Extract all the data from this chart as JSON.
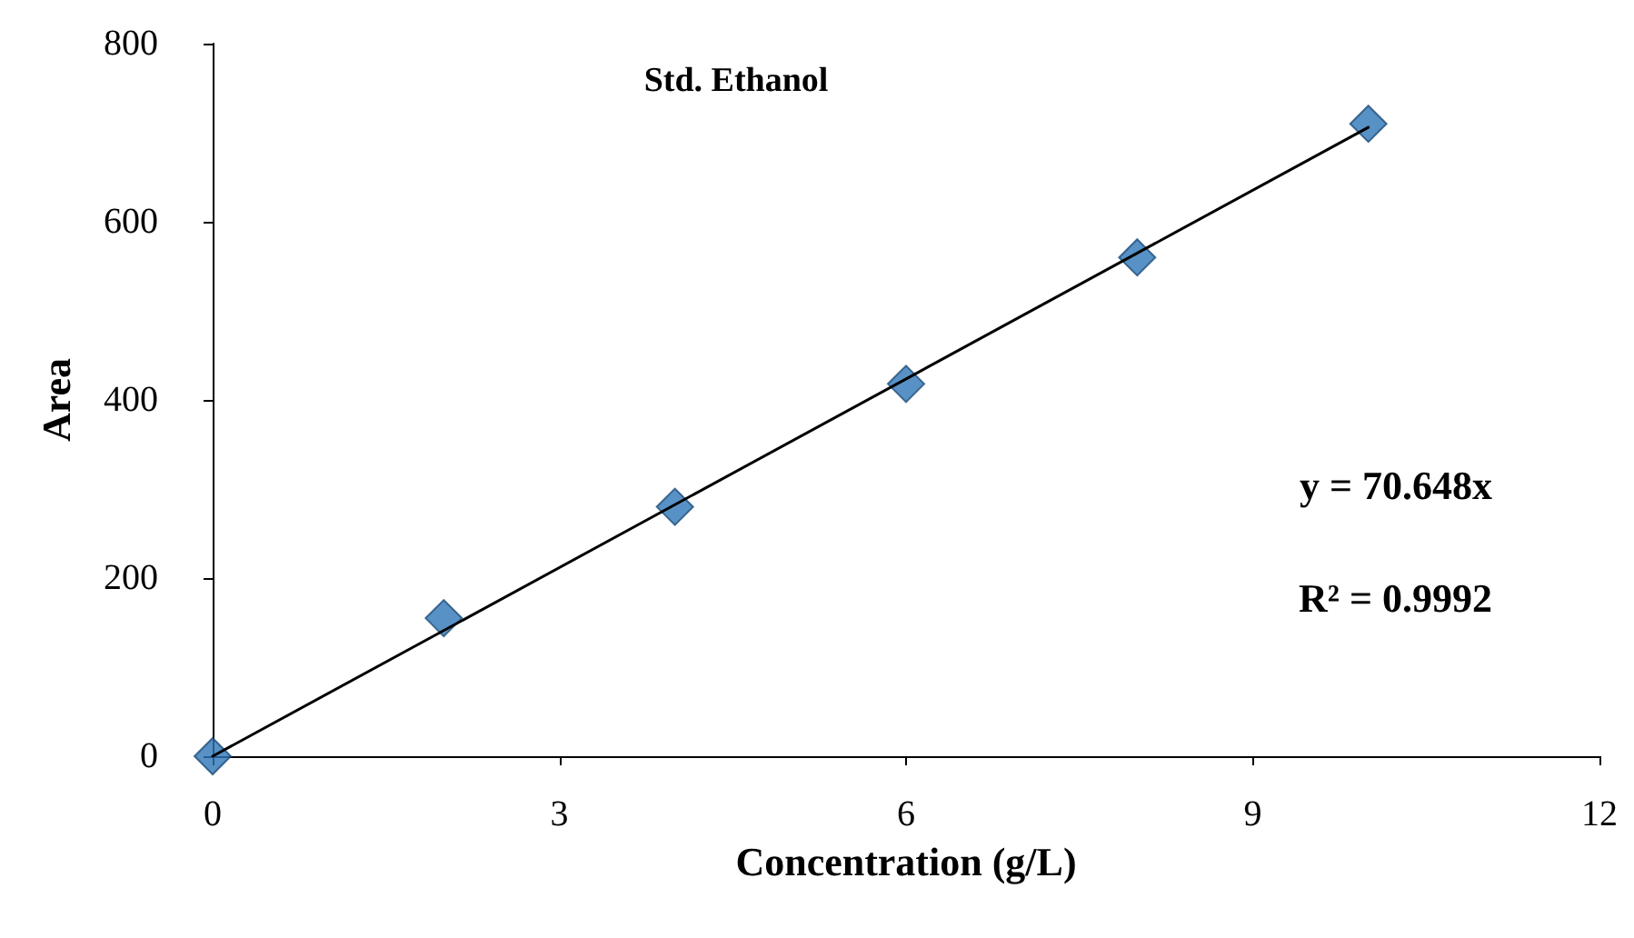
{
  "chart_data": {
    "type": "scatter",
    "title": "Std. Ethanol",
    "xlabel": "Concentration (g/L)",
    "ylabel": "Area",
    "annotations": [
      "y = 70.648x",
      "R² = 0.9992"
    ],
    "series": [
      {
        "color": "#2e75b6",
        "x": [
          0,
          2,
          4,
          6,
          8,
          10
        ],
        "values": [
          0,
          155,
          280,
          418,
          560,
          710
        ],
        "marker": "diamond"
      },
      {
        "type": "line",
        "color": "#000000",
        "x": [
          0,
          10
        ],
        "values": [
          0,
          706
        ],
        "marker": "none",
        "line_style": "solid"
      }
    ],
    "xlim": [
      0,
      12
    ],
    "xticks": [
      0,
      3,
      6,
      9,
      12
    ],
    "ylim": [
      0,
      800
    ],
    "yticks": [
      0,
      200,
      400,
      600,
      800
    ],
    "grid": false
  }
}
